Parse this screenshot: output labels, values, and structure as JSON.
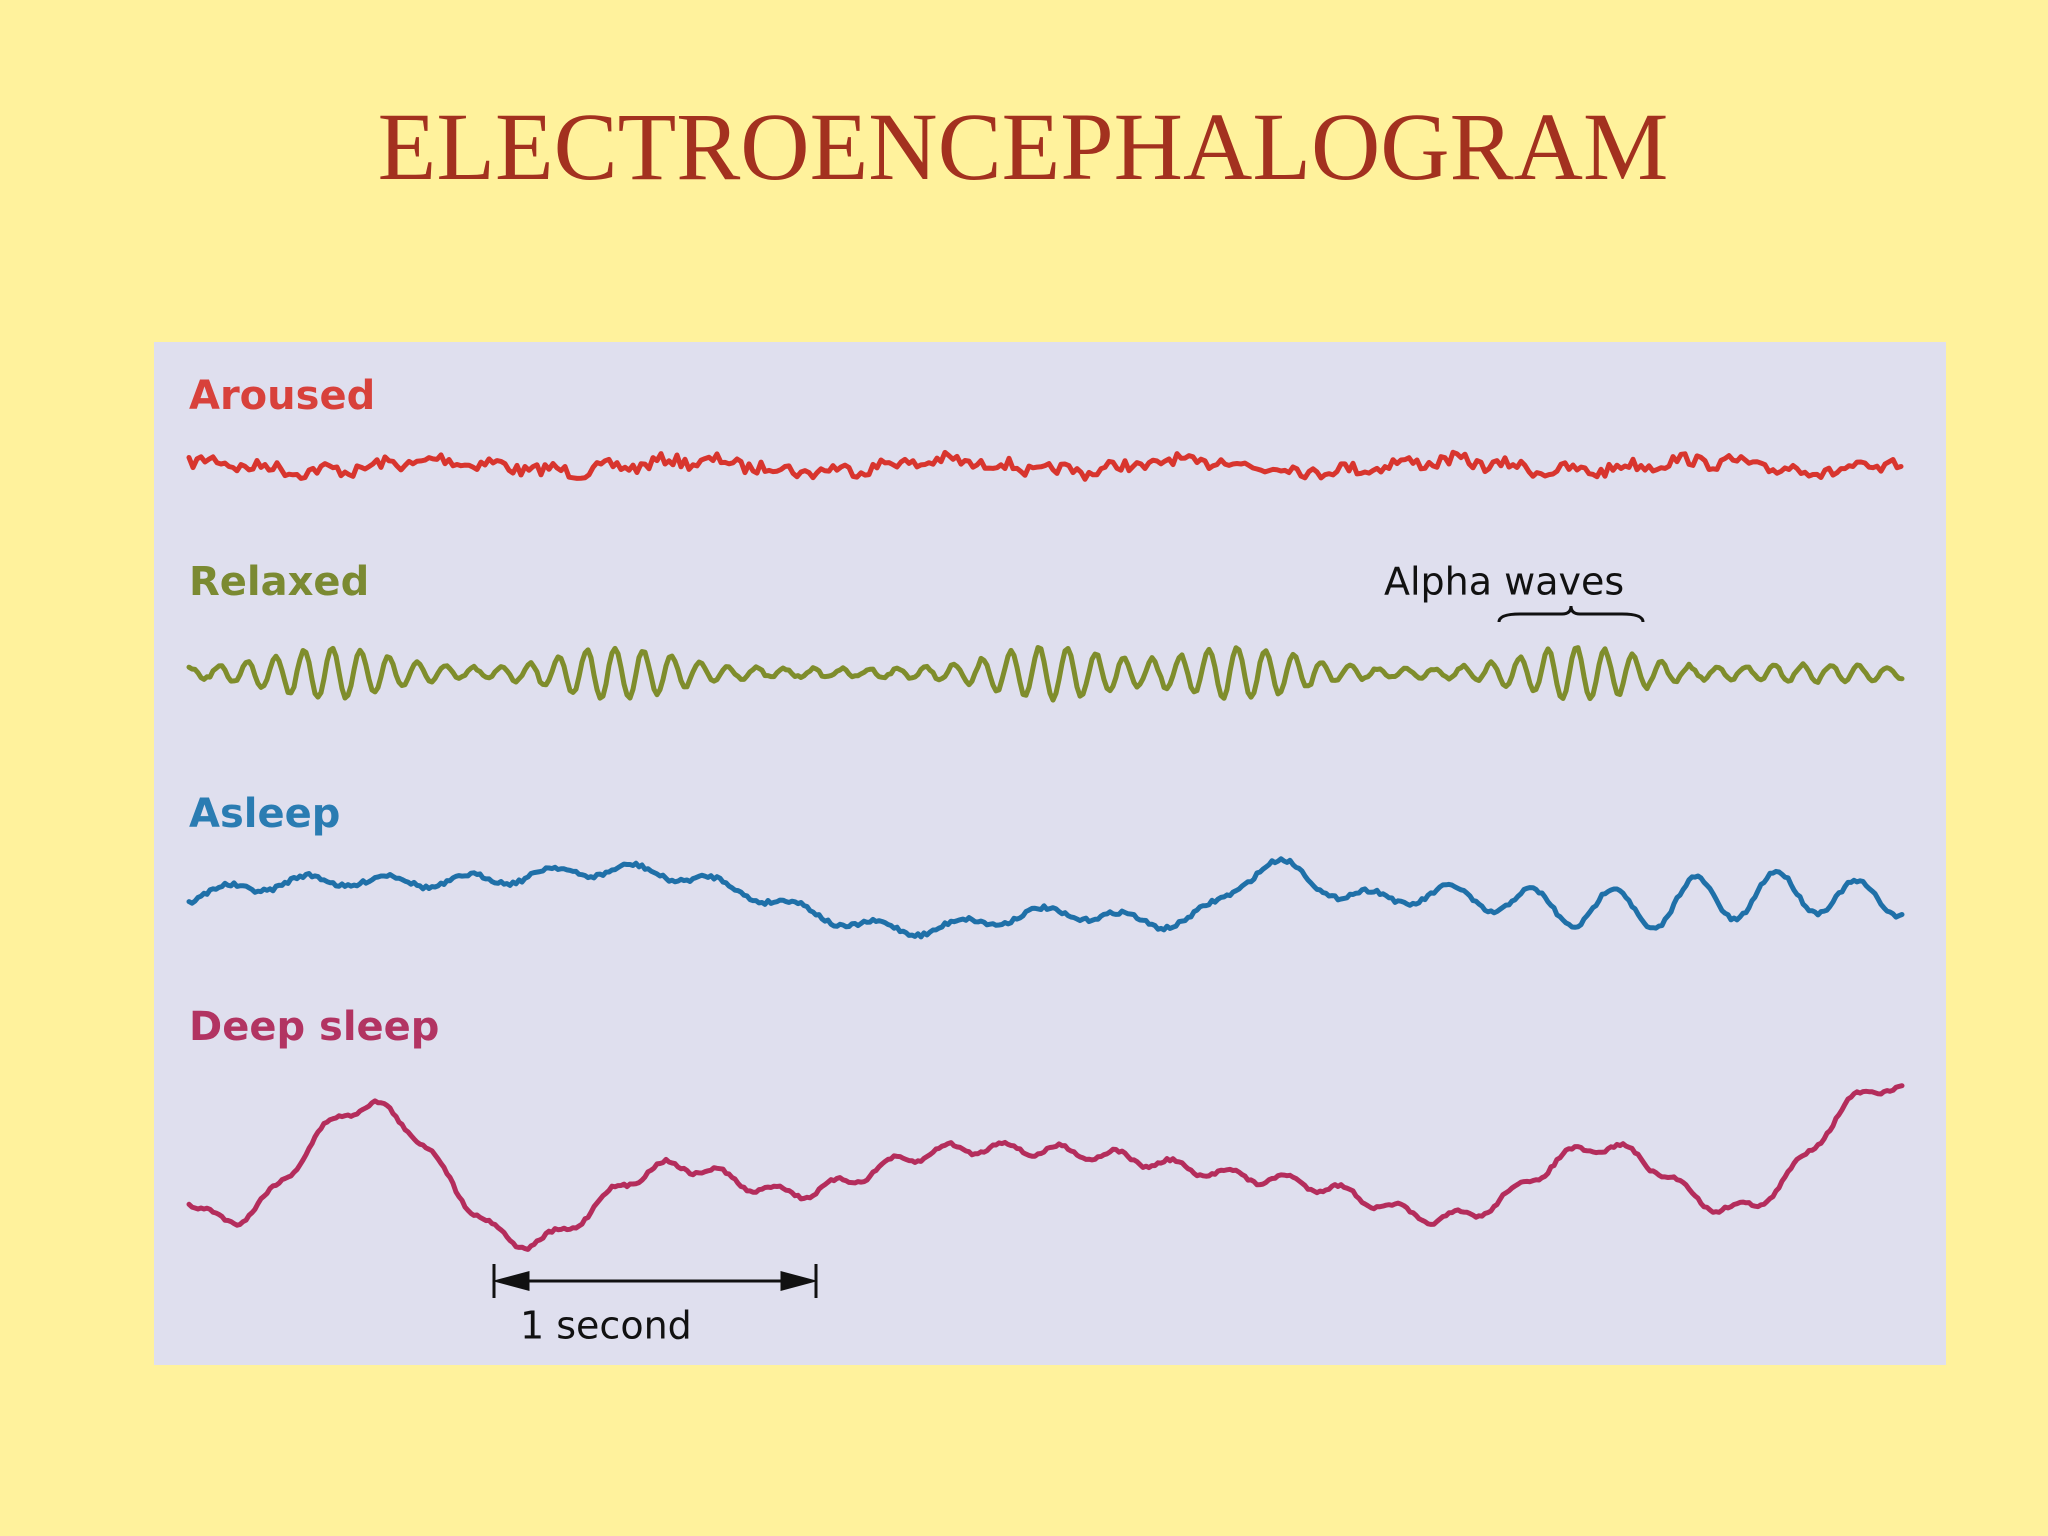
{
  "header": {
    "title": "ELECTROENCEPHALOGRAM"
  },
  "traces": [
    {
      "label": "Aroused"
    },
    {
      "label": "Relaxed"
    },
    {
      "label": "Asleep"
    },
    {
      "label": "Deep sleep"
    }
  ],
  "annotations": {
    "alpha": "Alpha waves",
    "scale": "1 second"
  }
}
